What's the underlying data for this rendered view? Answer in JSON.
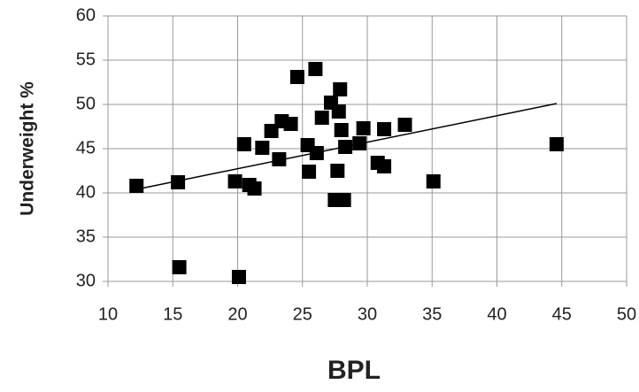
{
  "chart_data": {
    "type": "scatter",
    "xlabel": "BPL",
    "ylabel": "Underweight %",
    "series": [
      {
        "color": "#000000",
        "x": [
          12.2,
          15.4,
          15.5,
          19.8,
          20.1,
          20.5,
          20.9,
          21.3,
          21.9,
          22.6,
          23.2,
          23.4,
          24.1,
          24.6,
          25.4,
          25.5,
          26.0,
          26.1,
          26.5,
          27.2,
          27.5,
          27.8,
          27.7,
          27.9,
          28.0,
          28.2,
          28.3,
          29.4,
          29.7,
          30.8,
          31.3,
          31.3,
          32.9,
          35.1,
          44.6
        ],
        "values": [
          40.8,
          41.2,
          31.6,
          41.3,
          30.5,
          45.5,
          40.9,
          40.5,
          45.1,
          47.0,
          43.8,
          48.1,
          47.8,
          53.1,
          45.4,
          42.4,
          54.0,
          44.5,
          48.5,
          50.2,
          39.2,
          49.2,
          42.5,
          51.7,
          47.1,
          39.2,
          45.2,
          45.6,
          47.3,
          43.4,
          43.0,
          47.2,
          47.7,
          41.3,
          45.5
        ]
      }
    ],
    "trendline": {
      "color": "#000000",
      "x": [
        12.2,
        44.6
      ],
      "values": [
        40.4,
        50.1
      ]
    },
    "xlim": [
      10,
      50
    ],
    "xticks": [
      10,
      15,
      20,
      25,
      30,
      35,
      40,
      45,
      50
    ],
    "ylim": [
      30,
      60
    ],
    "yticks": [
      30,
      35,
      40,
      45,
      50,
      55,
      60
    ],
    "grid": true
  }
}
